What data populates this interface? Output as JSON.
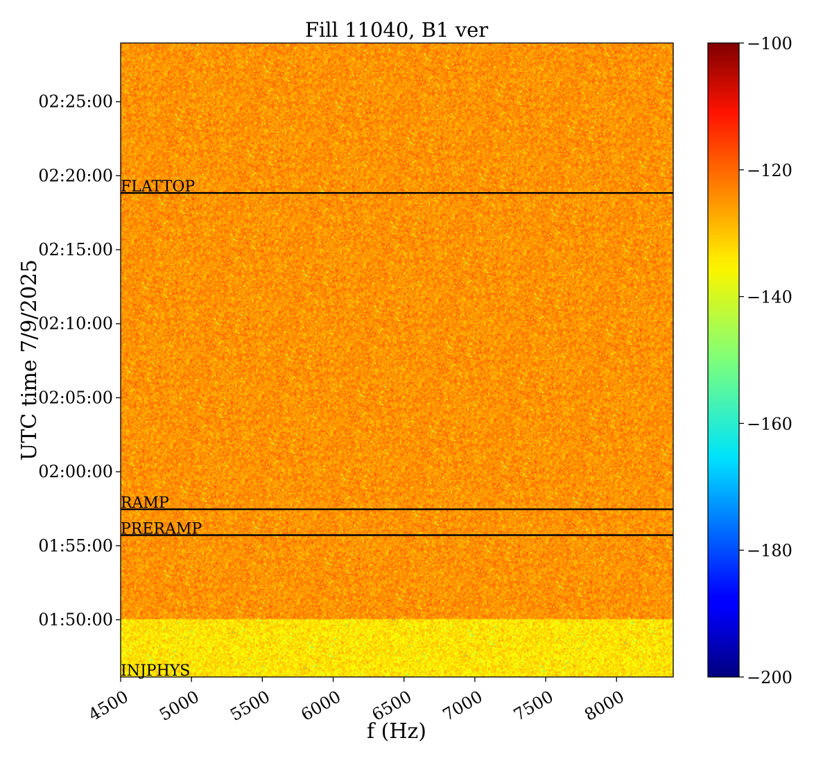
{
  "chart_data": {
    "type": "heatmap",
    "title": "Fill 11040, B1 ver",
    "xlabel": "f (Hz)",
    "ylabel": "UTC time 7/9/2025",
    "x_range": [
      4500,
      8400
    ],
    "x_ticks": [
      4500,
      5000,
      5500,
      6000,
      6500,
      7000,
      7500,
      8000
    ],
    "y_range": [
      "01:46:08",
      "02:28:58"
    ],
    "y_ticks": [
      "01:50:00",
      "01:55:00",
      "02:00:00",
      "02:05:00",
      "02:10:00",
      "02:15:00",
      "02:20:00",
      "02:25:00"
    ],
    "colormap": "jet",
    "color_range": [
      -200,
      -100
    ],
    "colorbar_ticks": [
      -100,
      -120,
      -140,
      -160,
      -180,
      -200
    ],
    "colorbar_tick_labels": [
      "−100",
      "−120",
      "−140",
      "−160",
      "−180",
      "−200"
    ],
    "phases": [
      {
        "label": "INJPHYS",
        "time": "01:46:08",
        "line": false
      },
      {
        "label": "PRERAMP",
        "time": "01:55:43",
        "line": true
      },
      {
        "label": "RAMP",
        "time": "01:57:28",
        "line": true
      },
      {
        "label": "FLATTOP",
        "time": "02:18:50",
        "line": true
      }
    ],
    "regions": [
      {
        "from": "01:46:08",
        "to": "01:50:00",
        "mean_level": -135
      },
      {
        "from": "01:50:00",
        "to": "02:28:58",
        "mean_level": -127
      }
    ]
  }
}
